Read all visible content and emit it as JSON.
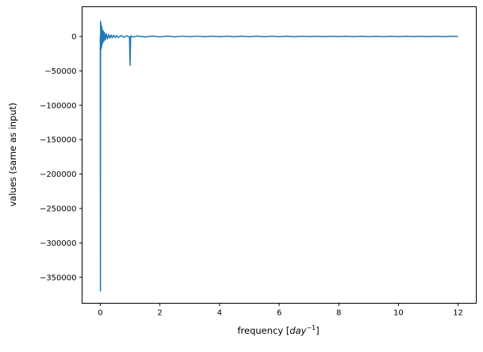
{
  "chart_data": {
    "type": "line",
    "title": "",
    "xlabel": "frequency [",
    "xlabel_math": "day",
    "xlabel_sup": "−1",
    "xlabel_end": "]",
    "ylabel": "values (same as input)",
    "xlim": [
      -0.61,
      12.61
    ],
    "ylim": [
      -387700,
      43200
    ],
    "xticks": [
      0,
      2,
      4,
      6,
      8,
      10,
      12
    ],
    "xtick_labels": [
      "0",
      "2",
      "4",
      "6",
      "8",
      "10",
      "12"
    ],
    "yticks": [
      0,
      -50000,
      -100000,
      -150000,
      -200000,
      -250000,
      -300000,
      -350000
    ],
    "ytick_labels": [
      "0",
      "−50000",
      "−100000",
      "−150000",
      "−200000",
      "−250000",
      "−300000",
      "−350000"
    ],
    "grid": false,
    "color": "#1f77b4",
    "series": [
      {
        "x": [
          0,
          0.005,
          0.01,
          0.015,
          0.02,
          0.03,
          0.04,
          0.05,
          0.06,
          0.08,
          0.1,
          0.12,
          0.14,
          0.17,
          0.2,
          0.24,
          0.28,
          0.32,
          0.36,
          0.4,
          0.45,
          0.5,
          0.55,
          0.6,
          0.7,
          0.8,
          0.9,
          0.98,
          1.0,
          1.02,
          1.1,
          1.25,
          1.5,
          1.75,
          2.0,
          2.25,
          2.5,
          2.75,
          3.0,
          3.25,
          3.5,
          3.75,
          4.0,
          4.25,
          4.5,
          4.75,
          5.0,
          5.25,
          5.5,
          5.75,
          6.0,
          6.25,
          6.5,
          6.75,
          7.0,
          7.25,
          7.5,
          7.75,
          8.0,
          8.25,
          8.5,
          8.75,
          9.0,
          9.25,
          9.5,
          9.75,
          10.0,
          10.25,
          10.5,
          10.75,
          11.0,
          11.25,
          11.5,
          11.75,
          12.0
        ],
        "y": [
          0,
          -370000,
          22000,
          -21000,
          20000,
          -18000,
          16000,
          -15000,
          12000,
          -10000,
          8000,
          -7000,
          6000,
          -5000,
          4000,
          -3500,
          3000,
          -2500,
          2200,
          -2000,
          1800,
          -1600,
          1500,
          -1400,
          1200,
          -1100,
          1000,
          -900,
          -42000,
          900,
          -800,
          700,
          -700,
          600,
          -600,
          550,
          -550,
          500,
          -500,
          500,
          -500,
          450,
          -450,
          450,
          -450,
          400,
          -400,
          400,
          -400,
          400,
          -400,
          400,
          -400,
          350,
          -350,
          350,
          -350,
          350,
          -350,
          350,
          -350,
          300,
          -300,
          300,
          -300,
          300,
          -300,
          300,
          -300,
          300,
          -300,
          300,
          -300,
          300,
          0
        ]
      }
    ]
  }
}
